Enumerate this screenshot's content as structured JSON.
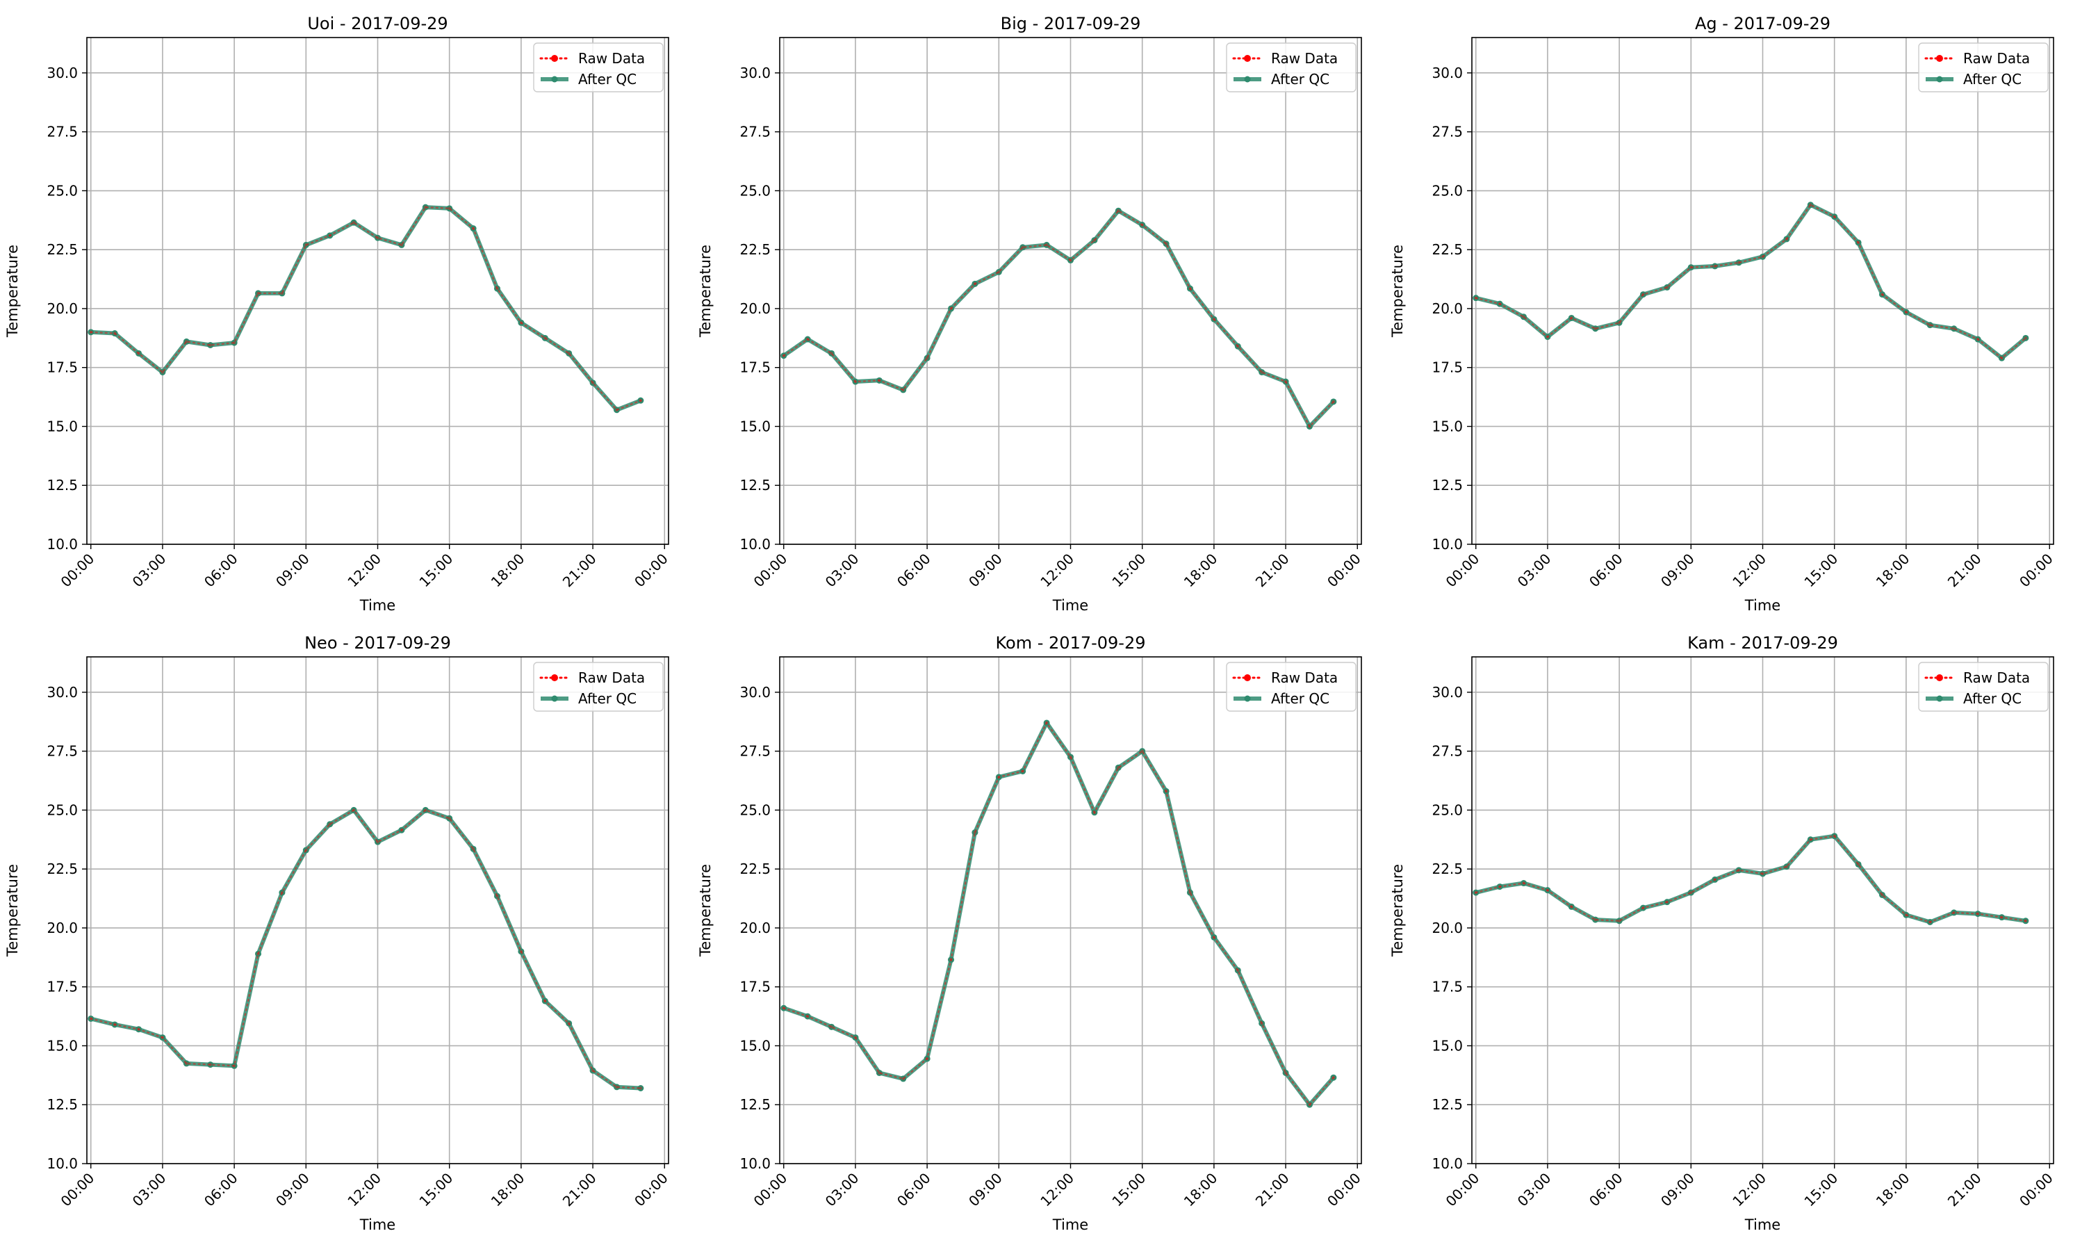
{
  "figure": {
    "legend": {
      "raw_label": "Raw Data",
      "qc_label": "After QC",
      "position": "upper right"
    },
    "colors": {
      "raw": "#ff0000",
      "qc": "#2e8b6e",
      "grid": "#b0b0b0",
      "axes": "#000000"
    }
  },
  "chart_data": [
    {
      "type": "line",
      "title": "Uoi - 2017-09-29",
      "xlabel": "Time",
      "ylabel": "Temperature",
      "ylim": [
        10,
        31.5
      ],
      "xlim": [
        "2017-09-28T23:50",
        "2017-09-30T00:10"
      ],
      "yticks": [
        "10.0",
        "12.5",
        "15.0",
        "17.5",
        "20.0",
        "22.5",
        "25.0",
        "27.5",
        "30.0"
      ],
      "xticks": [
        "00:00",
        "03:00",
        "06:00",
        "09:00",
        "12:00",
        "15:00",
        "18:00",
        "21:00",
        "00:00"
      ],
      "grid": true,
      "legend": "upper right",
      "x": [
        "00:00",
        "01:00",
        "02:00",
        "03:00",
        "04:00",
        "05:00",
        "06:00",
        "07:00",
        "08:00",
        "09:00",
        "10:00",
        "11:00",
        "12:00",
        "13:00",
        "14:00",
        "15:00",
        "16:00",
        "17:00",
        "18:00",
        "19:00",
        "20:00",
        "21:00",
        "22:00",
        "23:00"
      ],
      "series": [
        {
          "name": "Raw Data",
          "values": [
            19.0,
            18.95,
            18.1,
            17.3,
            18.6,
            18.45,
            18.55,
            20.65,
            20.65,
            22.7,
            23.1,
            23.65,
            23.0,
            22.7,
            24.3,
            24.25,
            23.4,
            20.85,
            19.4,
            18.75,
            18.1,
            16.85,
            15.7,
            16.1
          ]
        },
        {
          "name": "After QC",
          "values": [
            19.0,
            18.95,
            18.1,
            17.3,
            18.6,
            18.45,
            18.55,
            20.65,
            20.65,
            22.7,
            23.1,
            23.65,
            23.0,
            22.7,
            24.3,
            24.25,
            23.4,
            20.85,
            19.4,
            18.75,
            18.1,
            16.85,
            15.7,
            16.1
          ]
        }
      ]
    },
    {
      "type": "line",
      "title": "Big - 2017-09-29",
      "xlabel": "Time",
      "ylabel": "Temperature",
      "ylim": [
        10,
        31.5
      ],
      "xlim": [
        "2017-09-28T23:50",
        "2017-09-30T00:10"
      ],
      "yticks": [
        "10.0",
        "12.5",
        "15.0",
        "17.5",
        "20.0",
        "22.5",
        "25.0",
        "27.5",
        "30.0"
      ],
      "xticks": [
        "00:00",
        "03:00",
        "06:00",
        "09:00",
        "12:00",
        "15:00",
        "18:00",
        "21:00",
        "00:00"
      ],
      "grid": true,
      "legend": "upper right",
      "x": [
        "00:00",
        "01:00",
        "02:00",
        "03:00",
        "04:00",
        "05:00",
        "06:00",
        "07:00",
        "08:00",
        "09:00",
        "10:00",
        "11:00",
        "12:00",
        "13:00",
        "14:00",
        "15:00",
        "16:00",
        "17:00",
        "18:00",
        "19:00",
        "20:00",
        "21:00",
        "22:00",
        "23:00"
      ],
      "series": [
        {
          "name": "Raw Data",
          "values": [
            18.0,
            18.7,
            18.1,
            16.9,
            16.95,
            16.55,
            17.9,
            20.0,
            21.05,
            21.55,
            22.6,
            22.7,
            22.05,
            22.9,
            24.15,
            23.55,
            22.75,
            20.85,
            19.55,
            18.4,
            17.3,
            16.9,
            15.0,
            16.05
          ]
        },
        {
          "name": "After QC",
          "values": [
            18.0,
            18.7,
            18.1,
            16.9,
            16.95,
            16.55,
            17.9,
            20.0,
            21.05,
            21.55,
            22.6,
            22.7,
            22.05,
            22.9,
            24.15,
            23.55,
            22.75,
            20.85,
            19.55,
            18.4,
            17.3,
            16.9,
            15.0,
            16.05
          ]
        }
      ]
    },
    {
      "type": "line",
      "title": "Ag - 2017-09-29",
      "xlabel": "Time",
      "ylabel": "Temperature",
      "ylim": [
        10,
        31.5
      ],
      "xlim": [
        "2017-09-28T23:50",
        "2017-09-30T00:10"
      ],
      "yticks": [
        "10.0",
        "12.5",
        "15.0",
        "17.5",
        "20.0",
        "22.5",
        "25.0",
        "27.5",
        "30.0"
      ],
      "xticks": [
        "00:00",
        "03:00",
        "06:00",
        "09:00",
        "12:00",
        "15:00",
        "18:00",
        "21:00",
        "00:00"
      ],
      "grid": true,
      "legend": "upper right",
      "x": [
        "00:00",
        "01:00",
        "02:00",
        "03:00",
        "04:00",
        "05:00",
        "06:00",
        "07:00",
        "08:00",
        "09:00",
        "10:00",
        "11:00",
        "12:00",
        "13:00",
        "14:00",
        "15:00",
        "16:00",
        "17:00",
        "18:00",
        "19:00",
        "20:00",
        "21:00",
        "22:00",
        "23:00"
      ],
      "series": [
        {
          "name": "Raw Data",
          "values": [
            20.45,
            20.2,
            19.65,
            18.8,
            19.6,
            19.15,
            19.4,
            20.6,
            20.9,
            21.75,
            21.8,
            21.95,
            22.2,
            22.95,
            24.4,
            23.9,
            22.8,
            20.6,
            19.85,
            19.3,
            19.15,
            18.7,
            17.9,
            18.75
          ]
        },
        {
          "name": "After QC",
          "values": [
            20.45,
            20.2,
            19.65,
            18.8,
            19.6,
            19.15,
            19.4,
            20.6,
            20.9,
            21.75,
            21.8,
            21.95,
            22.2,
            22.95,
            24.4,
            23.9,
            22.8,
            20.6,
            19.85,
            19.3,
            19.15,
            18.7,
            17.9,
            18.75
          ]
        }
      ]
    },
    {
      "type": "line",
      "title": "Neo - 2017-09-29",
      "xlabel": "Time",
      "ylabel": "Temperature",
      "ylim": [
        10,
        31.5
      ],
      "xlim": [
        "2017-09-28T23:50",
        "2017-09-30T00:10"
      ],
      "yticks": [
        "10.0",
        "12.5",
        "15.0",
        "17.5",
        "20.0",
        "22.5",
        "25.0",
        "27.5",
        "30.0"
      ],
      "xticks": [
        "00:00",
        "03:00",
        "06:00",
        "09:00",
        "12:00",
        "15:00",
        "18:00",
        "21:00",
        "00:00"
      ],
      "grid": true,
      "legend": "upper right",
      "x": [
        "00:00",
        "01:00",
        "02:00",
        "03:00",
        "04:00",
        "05:00",
        "06:00",
        "07:00",
        "08:00",
        "09:00",
        "10:00",
        "11:00",
        "12:00",
        "13:00",
        "14:00",
        "15:00",
        "16:00",
        "17:00",
        "18:00",
        "19:00",
        "20:00",
        "21:00",
        "22:00",
        "23:00"
      ],
      "series": [
        {
          "name": "Raw Data",
          "values": [
            16.15,
            15.9,
            15.7,
            15.35,
            14.25,
            14.2,
            14.15,
            18.9,
            21.5,
            23.3,
            24.4,
            25.0,
            23.65,
            24.15,
            25.0,
            24.65,
            23.35,
            21.35,
            19.0,
            16.9,
            15.95,
            13.95,
            13.25,
            13.2
          ]
        },
        {
          "name": "After QC",
          "values": [
            16.15,
            15.9,
            15.7,
            15.35,
            14.25,
            14.2,
            14.15,
            18.9,
            21.5,
            23.3,
            24.4,
            25.0,
            23.65,
            24.15,
            25.0,
            24.65,
            23.35,
            21.35,
            19.0,
            16.9,
            15.95,
            13.95,
            13.25,
            13.2
          ]
        }
      ]
    },
    {
      "type": "line",
      "title": "Kom - 2017-09-29",
      "xlabel": "Time",
      "ylabel": "Temperature",
      "ylim": [
        10,
        31.5
      ],
      "xlim": [
        "2017-09-28T23:50",
        "2017-09-30T00:10"
      ],
      "yticks": [
        "10.0",
        "12.5",
        "15.0",
        "17.5",
        "20.0",
        "22.5",
        "25.0",
        "27.5",
        "30.0"
      ],
      "xticks": [
        "00:00",
        "03:00",
        "06:00",
        "09:00",
        "12:00",
        "15:00",
        "18:00",
        "21:00",
        "00:00"
      ],
      "grid": true,
      "legend": "upper right",
      "x": [
        "00:00",
        "01:00",
        "02:00",
        "03:00",
        "04:00",
        "05:00",
        "06:00",
        "07:00",
        "08:00",
        "09:00",
        "10:00",
        "11:00",
        "12:00",
        "13:00",
        "14:00",
        "15:00",
        "16:00",
        "17:00",
        "18:00",
        "19:00",
        "20:00",
        "21:00",
        "22:00",
        "23:00"
      ],
      "series": [
        {
          "name": "Raw Data",
          "values": [
            16.6,
            16.25,
            15.8,
            15.35,
            13.85,
            13.6,
            14.45,
            18.65,
            24.05,
            26.4,
            26.65,
            28.7,
            27.25,
            24.9,
            26.8,
            27.5,
            25.8,
            21.5,
            19.6,
            18.2,
            15.95,
            13.85,
            12.5,
            13.65
          ]
        },
        {
          "name": "After QC",
          "values": [
            16.6,
            16.25,
            15.8,
            15.35,
            13.85,
            13.6,
            14.45,
            18.65,
            24.05,
            26.4,
            26.65,
            28.7,
            27.25,
            24.9,
            26.8,
            27.5,
            25.8,
            21.5,
            19.6,
            18.2,
            15.95,
            13.85,
            12.5,
            13.65
          ]
        }
      ]
    },
    {
      "type": "line",
      "title": "Kam - 2017-09-29",
      "xlabel": "Time",
      "ylabel": "Temperature",
      "ylim": [
        10,
        31.5
      ],
      "xlim": [
        "2017-09-28T23:50",
        "2017-09-30T00:10"
      ],
      "yticks": [
        "10.0",
        "12.5",
        "15.0",
        "17.5",
        "20.0",
        "22.5",
        "25.0",
        "27.5",
        "30.0"
      ],
      "xticks": [
        "00:00",
        "03:00",
        "06:00",
        "09:00",
        "12:00",
        "15:00",
        "18:00",
        "21:00",
        "00:00"
      ],
      "grid": true,
      "legend": "upper right",
      "x": [
        "00:00",
        "01:00",
        "02:00",
        "03:00",
        "04:00",
        "05:00",
        "06:00",
        "07:00",
        "08:00",
        "09:00",
        "10:00",
        "11:00",
        "12:00",
        "13:00",
        "14:00",
        "15:00",
        "16:00",
        "17:00",
        "18:00",
        "19:00",
        "20:00",
        "21:00",
        "22:00",
        "23:00"
      ],
      "series": [
        {
          "name": "Raw Data",
          "values": [
            21.5,
            21.75,
            21.9,
            21.6,
            20.9,
            20.35,
            20.3,
            20.85,
            21.1,
            21.5,
            22.05,
            22.45,
            22.3,
            22.6,
            23.75,
            23.9,
            22.7,
            21.4,
            20.55,
            20.25,
            20.65,
            20.6,
            20.45,
            20.3
          ]
        },
        {
          "name": "After QC",
          "values": [
            21.5,
            21.75,
            21.9,
            21.6,
            20.9,
            20.35,
            20.3,
            20.85,
            21.1,
            21.5,
            22.05,
            22.45,
            22.3,
            22.6,
            23.75,
            23.9,
            22.7,
            21.4,
            20.55,
            20.25,
            20.65,
            20.6,
            20.45,
            20.3
          ]
        }
      ]
    }
  ]
}
